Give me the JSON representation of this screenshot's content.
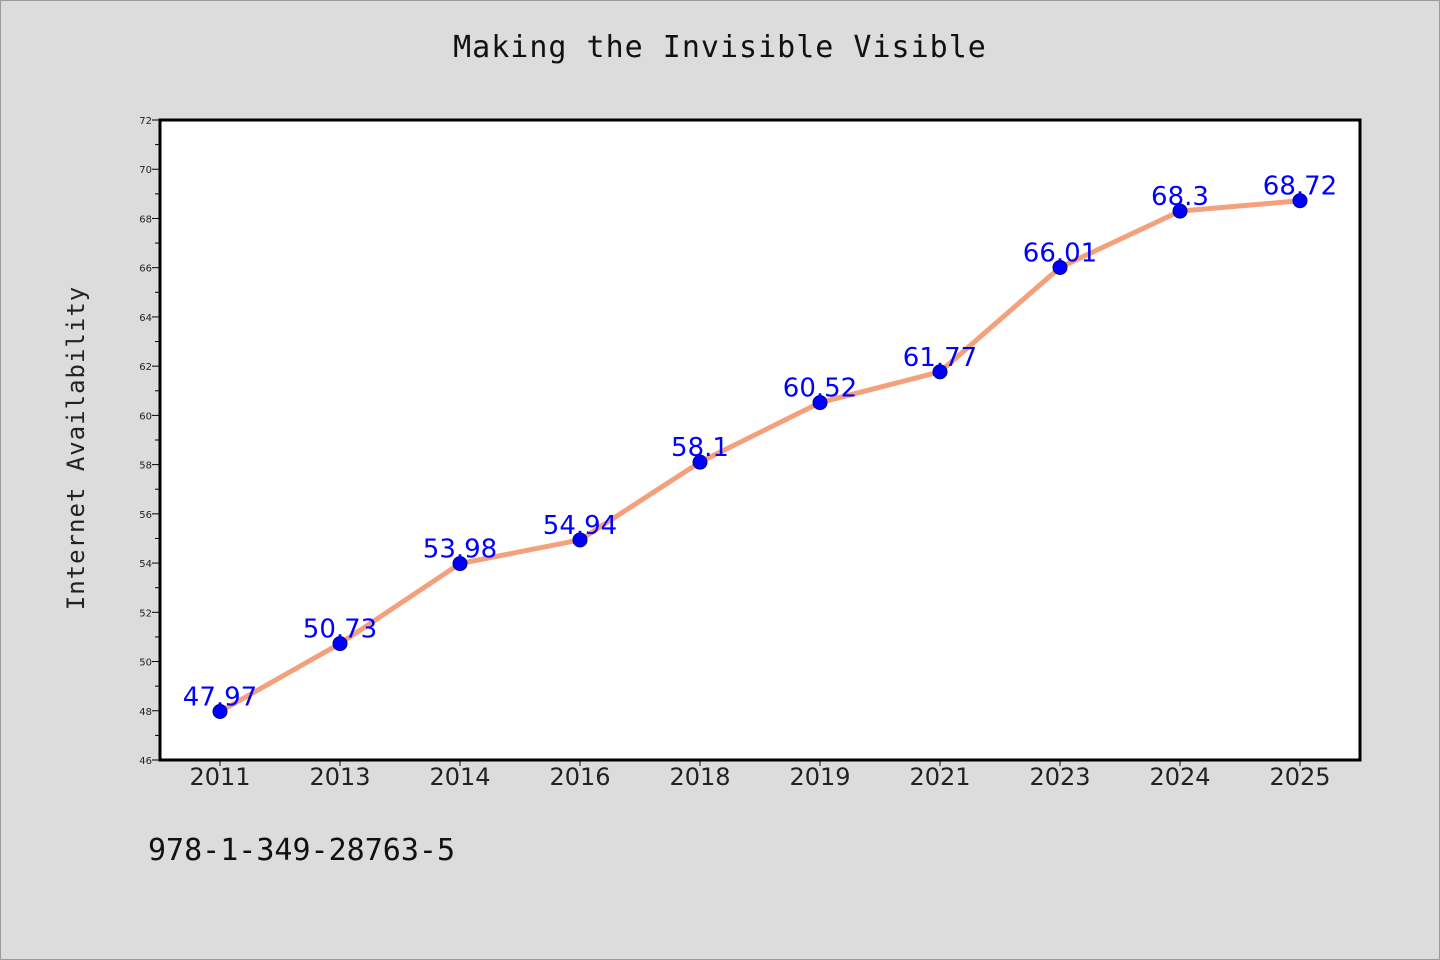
{
  "chart_data": {
    "type": "line",
    "title": "Making the Invisible Visible",
    "xlabel": "",
    "ylabel": "Internet Availability",
    "categories": [
      "2011",
      "2013",
      "2014",
      "2016",
      "2018",
      "2019",
      "2021",
      "2023",
      "2024",
      "2025"
    ],
    "series": [
      {
        "values": [
          47.97,
          50.73,
          53.98,
          54.94,
          58.1,
          60.52,
          61.77,
          66.01,
          68.3,
          68.72
        ],
        "line_color": "#f4a07c",
        "marker_color": "#0000ff"
      }
    ],
    "ylim": [
      46,
      72
    ],
    "yticks": [
      46,
      48,
      50,
      52,
      54,
      56,
      58,
      60,
      62,
      64,
      66,
      68,
      70,
      72
    ],
    "grid": false,
    "legend": "none"
  },
  "footer": {
    "isbn": "978-1-349-28763-5"
  }
}
